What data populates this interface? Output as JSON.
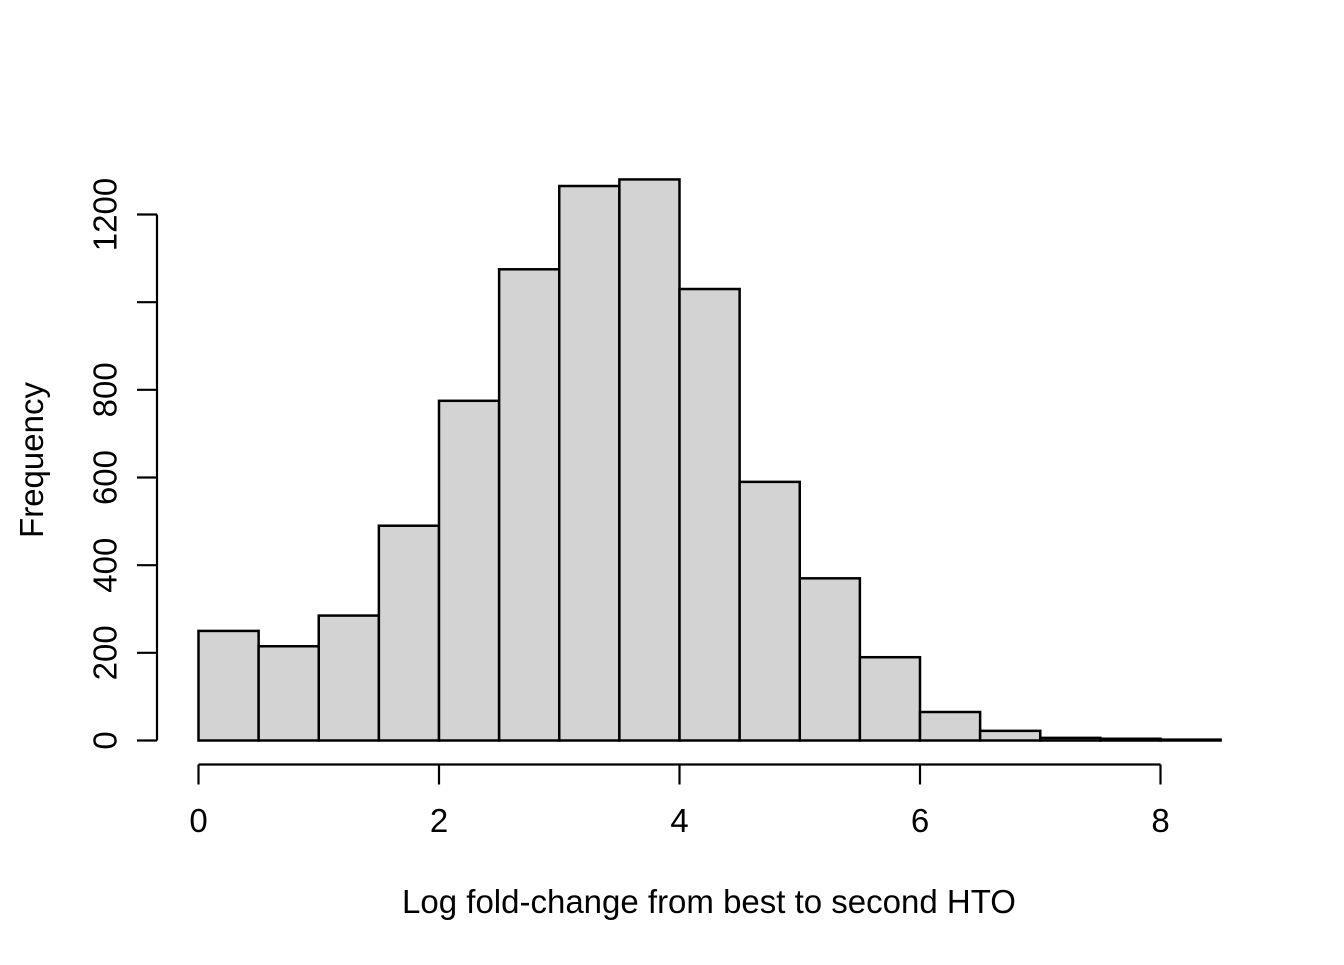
{
  "figure": {
    "background_color": "#ffffff"
  },
  "chart_data": {
    "type": "bar",
    "subtype": "histogram",
    "title": "",
    "xlabel": "Log fold-change from best to second HTO",
    "ylabel": "Frequency",
    "bin_edges": [
      0,
      0.5,
      1,
      1.5,
      2,
      2.5,
      3,
      3.5,
      4,
      4.5,
      5,
      5.5,
      6,
      6.5,
      7,
      7.5,
      8,
      8.5
    ],
    "counts": [
      250,
      215,
      285,
      490,
      775,
      1075,
      1265,
      1280,
      1030,
      590,
      370,
      190,
      65,
      22,
      6,
      4,
      2
    ],
    "x_ticks": [
      0,
      2,
      4,
      6,
      8
    ],
    "x_tick_labels": [
      "0",
      "2",
      "4",
      "6",
      "8"
    ],
    "y_ticks": [
      0,
      200,
      400,
      600,
      800,
      1000,
      1200
    ],
    "y_tick_labels": [
      "0",
      "200",
      "400",
      "600",
      "800",
      "",
      "1200"
    ],
    "xlim": [
      0,
      8.5
    ],
    "ylim": [
      0,
      1280
    ],
    "grid": false,
    "legend": false,
    "bar_fill_color": "#d3d3d3",
    "bar_border_color": "#000000",
    "axis_color": "#000000",
    "text_color": "#000000"
  }
}
